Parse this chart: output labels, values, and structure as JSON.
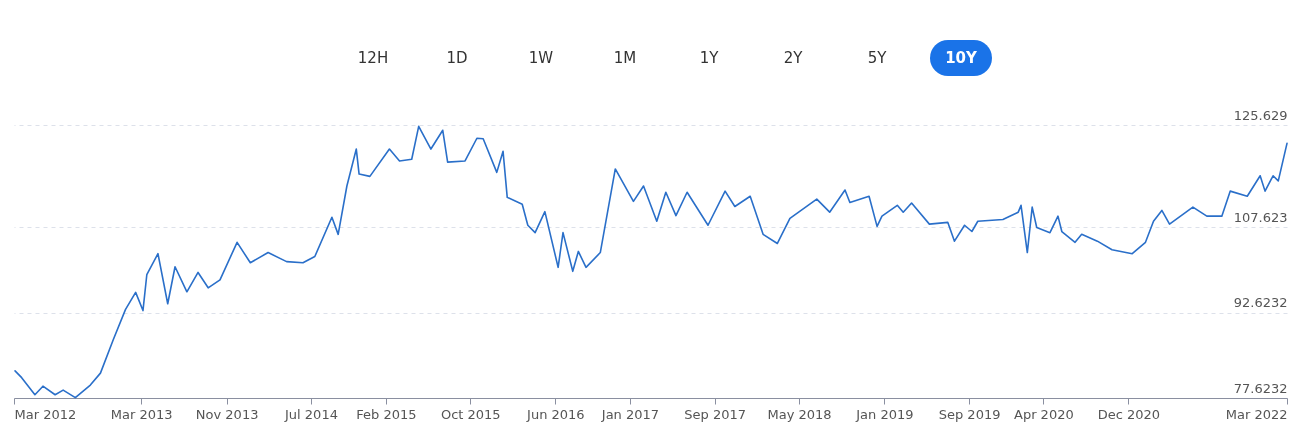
{
  "chart_data": {
    "type": "line",
    "annotations": [
      "12H",
      "1D",
      "1W",
      "1M",
      "1Y",
      "2Y",
      "5Y",
      "10Y"
    ],
    "x": [
      "2012-03-04",
      "2012-03-23",
      "2012-04-30",
      "2012-05-23",
      "2012-06-27",
      "2012-07-20",
      "2012-08-24",
      "2012-10-06",
      "2012-11-04",
      "2012-12-11",
      "2013-01-15",
      "2013-02-13",
      "2013-03-06",
      "2013-03-17",
      "2013-04-18",
      "2013-05-16",
      "2013-06-06",
      "2013-07-10",
      "2013-08-11",
      "2013-09-09",
      "2013-10-13",
      "2013-12-01",
      "2014-01-08",
      "2014-02-28",
      "2014-04-22",
      "2014-06-08",
      "2014-07-12",
      "2014-08-30",
      "2014-09-17",
      "2014-10-12",
      "2014-11-08",
      "2014-11-16",
      "2014-12-17",
      "2015-02-11",
      "2015-03-12",
      "2015-04-16",
      "2015-05-06",
      "2015-06-10",
      "2015-07-14",
      "2015-07-28",
      "2015-09-16",
      "2015-10-20",
      "2015-11-07",
      "2015-12-16",
      "2016-01-03",
      "2016-01-15",
      "2016-02-27",
      "2016-03-14",
      "2016-04-04",
      "2016-05-02",
      "2016-06-09",
      "2016-06-23",
      "2016-07-21",
      "2016-08-06",
      "2016-08-28",
      "2016-10-08",
      "2016-11-20",
      "2017-01-11",
      "2017-02-09",
      "2017-03-19",
      "2017-04-14",
      "2017-05-13",
      "2017-06-14",
      "2017-08-13",
      "2017-10-01",
      "2017-10-29",
      "2017-12-12",
      "2018-01-18",
      "2018-02-28",
      "2018-04-05",
      "2018-06-21",
      "2018-07-28",
      "2018-09-10",
      "2018-09-24",
      "2018-11-18",
      "2018-12-11",
      "2018-12-25",
      "2019-02-07",
      "2019-02-24",
      "2019-03-20",
      "2019-05-10",
      "2019-07-02",
      "2019-07-21",
      "2019-08-19",
      "2019-09-09",
      "2019-09-26",
      "2019-12-07",
      "2020-01-20",
      "2020-01-28",
      "2020-02-15",
      "2020-02-29",
      "2020-03-13",
      "2020-04-20",
      "2020-05-13",
      "2020-05-24",
      "2020-07-01",
      "2020-07-20",
      "2020-09-03",
      "2020-10-15",
      "2020-12-12",
      "2021-01-19",
      "2021-02-11",
      "2021-03-07",
      "2021-03-29",
      "2021-06-04",
      "2021-07-14",
      "2021-08-26",
      "2021-09-19",
      "2021-11-07",
      "2021-12-14",
      "2021-12-28",
      "2022-01-20",
      "2022-02-04",
      "2022-03-01"
    ],
    "series": [
      {
        "color": "#2a6fc9",
        "values": [
          82.4,
          81.2,
          78.2,
          79.7,
          78.2,
          79.0,
          77.7,
          79.9,
          82.0,
          87.9,
          93.2,
          96.2,
          93.0,
          99.3,
          103.0,
          94.2,
          100.7,
          96.3,
          99.7,
          97.0,
          98.4,
          105.0,
          101.4,
          103.2,
          101.6,
          101.4,
          102.5,
          109.4,
          106.4,
          114.9,
          121.4,
          117.0,
          116.6,
          121.4,
          119.3,
          119.6,
          125.4,
          121.4,
          124.7,
          119.1,
          119.3,
          123.3,
          123.2,
          117.3,
          121.0,
          112.9,
          111.7,
          108.0,
          106.7,
          110.4,
          100.6,
          106.7,
          99.9,
          103.4,
          100.6,
          103.2,
          117.9,
          112.2,
          114.9,
          108.7,
          113.8,
          109.7,
          113.8,
          108.0,
          114.0,
          111.3,
          113.1,
          106.4,
          104.8,
          109.2,
          112.6,
          110.3,
          114.2,
          112.0,
          113.1,
          107.8,
          109.6,
          111.5,
          110.3,
          111.9,
          108.2,
          108.5,
          105.2,
          108.0,
          106.9,
          108.7,
          109.0,
          110.3,
          111.5,
          103.2,
          111.2,
          107.6,
          106.7,
          109.6,
          106.9,
          105.0,
          106.4,
          105.2,
          103.7,
          103.0,
          105.0,
          108.7,
          110.6,
          108.2,
          111.2,
          109.6,
          109.6,
          114.0,
          113.1,
          116.7,
          114.0,
          116.7,
          115.8,
          122.4
        ]
      }
    ],
    "xlim": [
      "2012-03-01",
      "2022-03-01"
    ],
    "xticks": [
      {
        "value": "2012-03",
        "label": "Mar 2012"
      },
      {
        "value": "2013-03",
        "label": "Mar 2013"
      },
      {
        "value": "2013-11",
        "label": "Nov 2013"
      },
      {
        "value": "2014-07",
        "label": "Jul 2014"
      },
      {
        "value": "2015-02",
        "label": "Feb 2015"
      },
      {
        "value": "2015-10",
        "label": "Oct 2015"
      },
      {
        "value": "2016-06",
        "label": "Jun 2016"
      },
      {
        "value": "2017-01",
        "label": "Jan 2017"
      },
      {
        "value": "2017-09",
        "label": "Sep 2017"
      },
      {
        "value": "2018-05",
        "label": "May 2018"
      },
      {
        "value": "2019-01",
        "label": "Jan 2019"
      },
      {
        "value": "2019-09",
        "label": "Sep 2019"
      },
      {
        "value": "2020-04",
        "label": "Apr 2020"
      },
      {
        "value": "2020-12",
        "label": "Dec 2020"
      },
      {
        "value": "2022-03",
        "label": "Mar 2022"
      }
    ],
    "ylim": [
      77.6232,
      125.629
    ],
    "yticks": [
      77.6232,
      92.6232,
      107.623,
      125.629
    ],
    "grid": "y",
    "marker": "none",
    "line_style": "solid"
  }
}
